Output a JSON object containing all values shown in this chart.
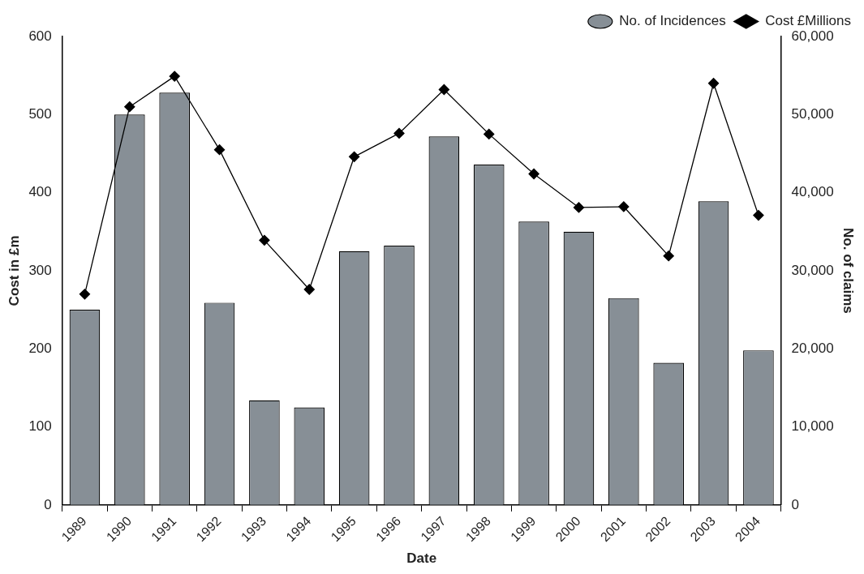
{
  "chart_data": {
    "type": "bar",
    "xlabel": "Date",
    "ylabel": "Cost in £m",
    "y2label": "No. of claims",
    "categories": [
      "1989",
      "1990",
      "1991",
      "1992",
      "1993",
      "1994",
      "1995",
      "1996",
      "1997",
      "1998",
      "1999",
      "2000",
      "2001",
      "2002",
      "2003",
      "2004"
    ],
    "series": [
      {
        "name": "No. of Incidences",
        "axis": "y2",
        "color": "#878f96",
        "values": [
          25000,
          50000,
          52800,
          25900,
          13400,
          12500,
          32500,
          33200,
          47200,
          43600,
          36300,
          35000,
          26500,
          18200,
          38900,
          19800
        ]
      },
      {
        "name": "Cost £Millions",
        "type": "line",
        "axis": "y",
        "color": "#000000",
        "marker": "diamond",
        "values": [
          270,
          510,
          549,
          455,
          339,
          276,
          446,
          476,
          532,
          475,
          424,
          381,
          382,
          319,
          540,
          371
        ]
      }
    ],
    "ylim": [
      0,
      600
    ],
    "yticks": [
      0,
      100,
      200,
      300,
      400,
      500,
      600
    ],
    "y2lim": [
      0,
      60000
    ],
    "y2ticks": [
      {
        "value": 0,
        "label": "0"
      },
      {
        "value": 10000,
        "label": "10,000"
      },
      {
        "value": 20000,
        "label": "20,000"
      },
      {
        "value": 30000,
        "label": "30,000"
      },
      {
        "value": 40000,
        "label": "40,000"
      },
      {
        "value": 50000,
        "label": "50,000"
      },
      {
        "value": 60000,
        "label": "60,000"
      }
    ],
    "grid": false,
    "legend": "top right"
  }
}
